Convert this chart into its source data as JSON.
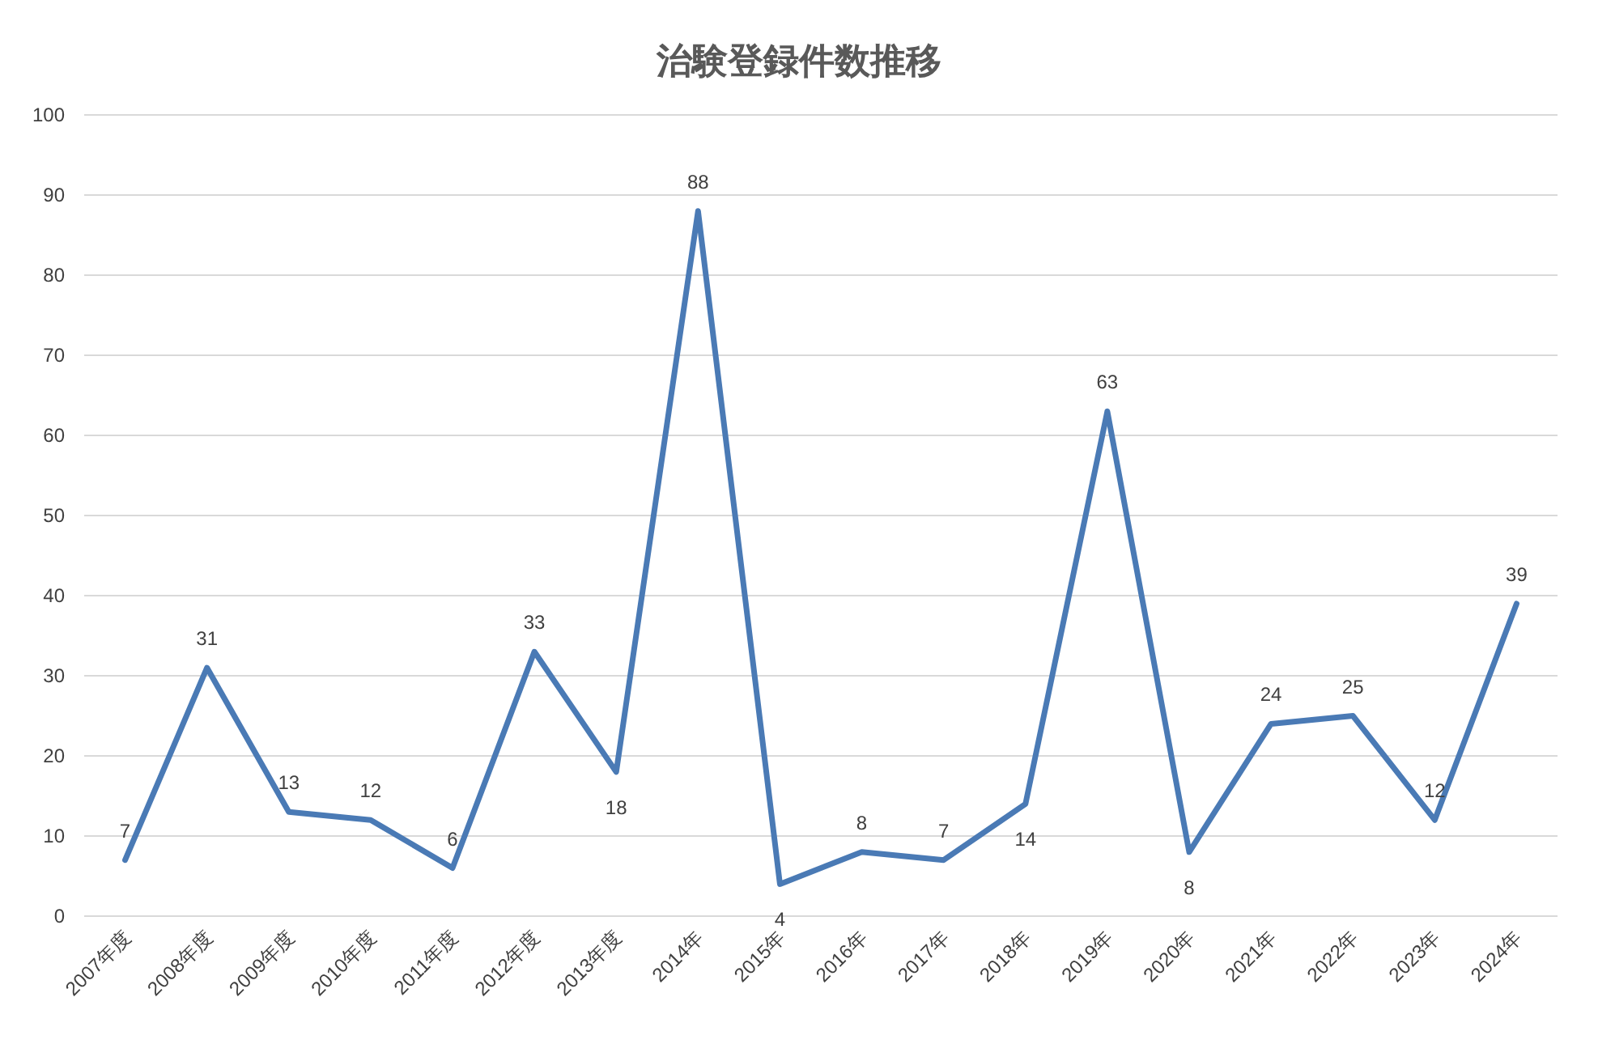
{
  "chart_data": {
    "type": "line",
    "title": "治験登録件数推移",
    "categories": [
      "2007年度",
      "2008年度",
      "2009年度",
      "2010年度",
      "2011年度",
      "2012年度",
      "2013年度",
      "2014年",
      "2015年",
      "2016年",
      "2017年",
      "2018年",
      "2019年",
      "2020年",
      "2021年",
      "2022年",
      "2023年",
      "2024年"
    ],
    "series": [
      {
        "color": "#4a7ab5",
        "values": [
          7,
          31,
          13,
          12,
          6,
          33,
          18,
          88,
          4,
          8,
          7,
          14,
          63,
          8,
          24,
          25,
          12,
          39
        ]
      }
    ],
    "ylim": [
      0,
      100
    ],
    "yticks": [
      0,
      10,
      20,
      30,
      40,
      50,
      60,
      70,
      80,
      90,
      100
    ],
    "grid": "y",
    "data_labels": true
  }
}
